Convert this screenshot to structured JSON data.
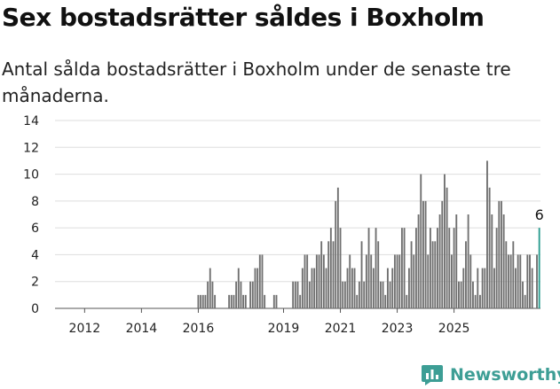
{
  "title": "Sex bostadsrätter såldes i Boxholm",
  "subtitle": "Antal sålda bostadsrätter i Boxholm under de senaste tre månaderna.",
  "brand": {
    "name": "Newsworthy",
    "icon": "newsworthy-logo-icon",
    "color": "#3d9e95"
  },
  "colors": {
    "bar": "#707070",
    "highlight": "#2a9d8f",
    "grid": "#dddddd"
  },
  "chart_data": {
    "type": "bar",
    "title": "Sex bostadsrätter såldes i Boxholm",
    "subtitle": "Antal sålda bostadsrätter i Boxholm under de senaste tre månaderna.",
    "xlabel": "",
    "ylabel": "",
    "ylim": [
      0,
      14
    ],
    "yticks": [
      "0",
      "2",
      "4",
      "6",
      "8",
      "10",
      "12",
      "14"
    ],
    "xticks": [
      "2012",
      "2014",
      "2016",
      "2019",
      "2021",
      "2023",
      "2025"
    ],
    "xtick_months": [
      "2012-01",
      "2014-01",
      "2016-01",
      "2019-01",
      "2021-01",
      "2023-01",
      "2025-01"
    ],
    "grid": true,
    "x_start": "2011-01",
    "values": [
      0,
      0,
      0,
      0,
      0,
      0,
      0,
      0,
      0,
      0,
      0,
      0,
      0,
      0,
      0,
      0,
      0,
      0,
      0,
      0,
      0,
      0,
      0,
      0,
      0,
      0,
      0,
      0,
      0,
      0,
      0,
      0,
      0,
      0,
      0,
      0,
      0,
      0,
      0,
      0,
      0,
      0,
      0,
      0,
      0,
      0,
      0,
      0,
      0,
      0,
      0,
      0,
      0,
      0,
      0,
      0,
      0,
      0,
      0,
      0,
      1,
      1,
      1,
      1,
      2,
      3,
      2,
      1,
      0,
      0,
      0,
      0,
      0,
      1,
      1,
      1,
      2,
      3,
      2,
      1,
      1,
      0,
      2,
      2,
      3,
      3,
      4,
      4,
      1,
      0,
      0,
      0,
      1,
      1,
      0,
      0,
      0,
      0,
      0,
      0,
      2,
      2,
      2,
      1,
      3,
      4,
      4,
      2,
      3,
      3,
      4,
      4,
      5,
      4,
      3,
      5,
      6,
      5,
      8,
      9,
      6,
      2,
      2,
      3,
      4,
      3,
      3,
      1,
      2,
      5,
      2,
      4,
      6,
      4,
      3,
      6,
      5,
      2,
      2,
      1,
      3,
      2,
      3,
      4,
      4,
      4,
      6,
      6,
      1,
      3,
      5,
      4,
      6,
      7,
      10,
      8,
      8,
      4,
      6,
      5,
      5,
      6,
      7,
      8,
      10,
      9,
      6,
      4,
      6,
      7,
      2,
      2,
      3,
      5,
      7,
      4,
      2,
      1,
      3,
      1,
      3,
      3,
      11,
      9,
      7,
      3,
      6,
      8,
      8,
      7,
      5,
      4,
      4,
      5,
      3,
      4,
      4,
      2,
      1,
      4,
      4,
      3,
      0,
      4,
      6
    ],
    "highlight_last": true,
    "annotations": [
      {
        "text": "6",
        "target": "last"
      }
    ]
  }
}
